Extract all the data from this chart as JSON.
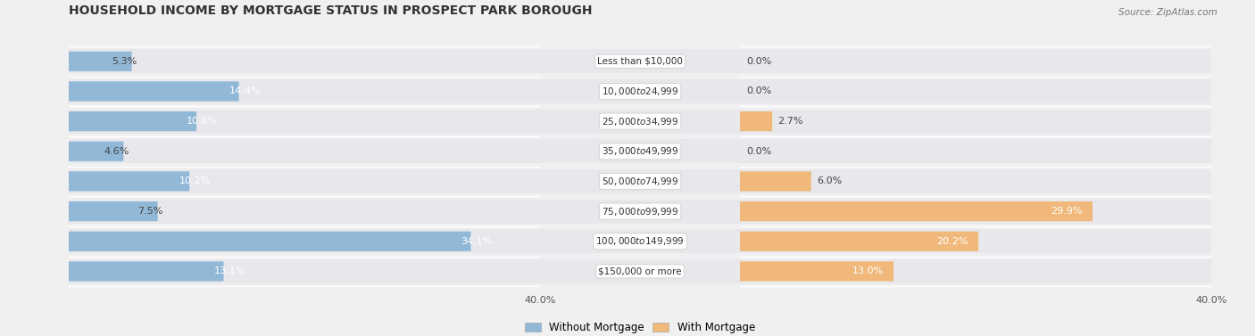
{
  "title": "HOUSEHOLD INCOME BY MORTGAGE STATUS IN PROSPECT PARK BOROUGH",
  "source": "Source: ZipAtlas.com",
  "categories": [
    "Less than $10,000",
    "$10,000 to $24,999",
    "$25,000 to $34,999",
    "$35,000 to $49,999",
    "$50,000 to $74,999",
    "$75,000 to $99,999",
    "$100,000 to $149,999",
    "$150,000 or more"
  ],
  "without_mortgage": [
    5.3,
    14.4,
    10.8,
    4.6,
    10.2,
    7.5,
    34.1,
    13.1
  ],
  "with_mortgage": [
    0.0,
    0.0,
    2.7,
    0.0,
    6.0,
    29.9,
    20.2,
    13.0
  ],
  "color_without": "#92b8d8",
  "color_with": "#f0b87a",
  "axis_max": 40.0,
  "background_color": "#f0f0f0",
  "row_bg_color": "#e8e8ec",
  "title_fontsize": 10,
  "label_fontsize": 8,
  "tick_fontsize": 8,
  "legend_fontsize": 8.5,
  "cat_label_fontsize": 7.5
}
